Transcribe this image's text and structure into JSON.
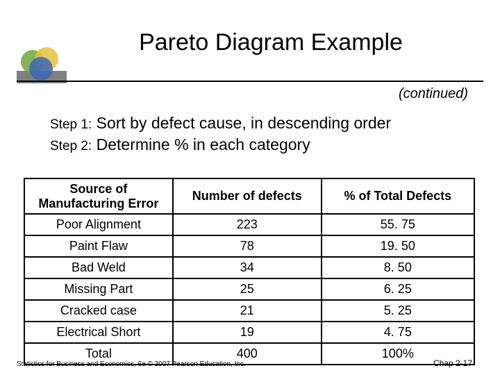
{
  "title": "Pareto Diagram Example",
  "continued": "(continued)",
  "steps": {
    "step1_label": "Step 1:",
    "step1_text": " Sort by defect cause, in descending order",
    "step2_label": "Step 2:",
    "step2_text": " Determine % in each category"
  },
  "table": {
    "headers": [
      "Source of\nManufacturing Error",
      "Number of defects",
      "% of Total Defects"
    ],
    "rows": [
      [
        "Poor Alignment",
        "223",
        "55. 75"
      ],
      [
        "Paint Flaw",
        "78",
        "19. 50"
      ],
      [
        "Bad Weld",
        "34",
        "8. 50"
      ],
      [
        "Missing Part",
        "25",
        "6. 25"
      ],
      [
        "Cracked case",
        "21",
        "5. 25"
      ],
      [
        "Electrical Short",
        "19",
        "4. 75"
      ],
      [
        "Total",
        "400",
        "100%"
      ]
    ]
  },
  "footer": {
    "left": "Statistics for Business and Economics, 6e © 2007 Pearson Education, Inc.",
    "right": "Chap 2-17"
  },
  "colors": {
    "circle_green": "#71a63a",
    "circle_yellow": "#e6c23a",
    "circle_blue": "#3a67b3",
    "logo_rect": "#808080",
    "text": "#000000",
    "background": "#ffffff",
    "table_border": "#000000"
  }
}
